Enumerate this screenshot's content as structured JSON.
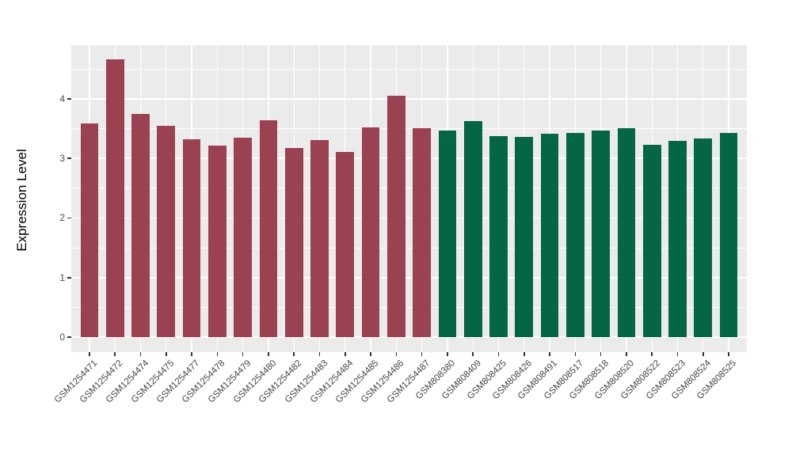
{
  "figure": {
    "background": "#FFFFFF"
  },
  "chart_data": {
    "type": "bar",
    "title": "",
    "xlabel": "",
    "ylabel": "Expression Level",
    "ylim": [
      -0.25,
      4.9
    ],
    "yticks": [
      0,
      1,
      2,
      3,
      4
    ],
    "minor_yticks": [
      0.5,
      1.5,
      2.5,
      3.5,
      4.5
    ],
    "grid": "on",
    "legend": "none",
    "panel_bg": "#EBEBEB",
    "grid_color": "#FFFFFF",
    "tick_color": "#333333",
    "axis_text_color": "#444444",
    "axis_title_color": "#000000",
    "group_colors": {
      "GSM1254xxx": "#9A4152",
      "GSM808xxx": "#046647"
    },
    "bars": [
      {
        "label": "GSM1254471",
        "value": 3.58,
        "group": "GSM1254xxx"
      },
      {
        "label": "GSM1254472",
        "value": 4.66,
        "group": "GSM1254xxx"
      },
      {
        "label": "GSM1254474",
        "value": 3.75,
        "group": "GSM1254xxx"
      },
      {
        "label": "GSM1254475",
        "value": 3.55,
        "group": "GSM1254xxx"
      },
      {
        "label": "GSM1254477",
        "value": 3.32,
        "group": "GSM1254xxx"
      },
      {
        "label": "GSM1254478",
        "value": 3.21,
        "group": "GSM1254xxx"
      },
      {
        "label": "GSM1254479",
        "value": 3.35,
        "group": "GSM1254xxx"
      },
      {
        "label": "GSM1254480",
        "value": 3.64,
        "group": "GSM1254xxx"
      },
      {
        "label": "GSM1254482",
        "value": 3.17,
        "group": "GSM1254xxx"
      },
      {
        "label": "GSM1254483",
        "value": 3.31,
        "group": "GSM1254xxx"
      },
      {
        "label": "GSM1254484",
        "value": 3.11,
        "group": "GSM1254xxx"
      },
      {
        "label": "GSM1254485",
        "value": 3.52,
        "group": "GSM1254xxx"
      },
      {
        "label": "GSM1254486",
        "value": 4.05,
        "group": "GSM1254xxx"
      },
      {
        "label": "GSM1254487",
        "value": 3.51,
        "group": "GSM1254xxx"
      },
      {
        "label": "GSM808380",
        "value": 3.46,
        "group": "GSM808xxx"
      },
      {
        "label": "GSM808409",
        "value": 3.63,
        "group": "GSM808xxx"
      },
      {
        "label": "GSM808425",
        "value": 3.38,
        "group": "GSM808xxx"
      },
      {
        "label": "GSM808426",
        "value": 3.36,
        "group": "GSM808xxx"
      },
      {
        "label": "GSM808491",
        "value": 3.41,
        "group": "GSM808xxx"
      },
      {
        "label": "GSM808517",
        "value": 3.43,
        "group": "GSM808xxx"
      },
      {
        "label": "GSM808518",
        "value": 3.46,
        "group": "GSM808xxx"
      },
      {
        "label": "GSM808520",
        "value": 3.51,
        "group": "GSM808xxx"
      },
      {
        "label": "GSM808522",
        "value": 3.23,
        "group": "GSM808xxx"
      },
      {
        "label": "GSM808523",
        "value": 3.29,
        "group": "GSM808xxx"
      },
      {
        "label": "GSM808524",
        "value": 3.33,
        "group": "GSM808xxx"
      },
      {
        "label": "GSM808525",
        "value": 3.43,
        "group": "GSM808xxx"
      }
    ]
  }
}
